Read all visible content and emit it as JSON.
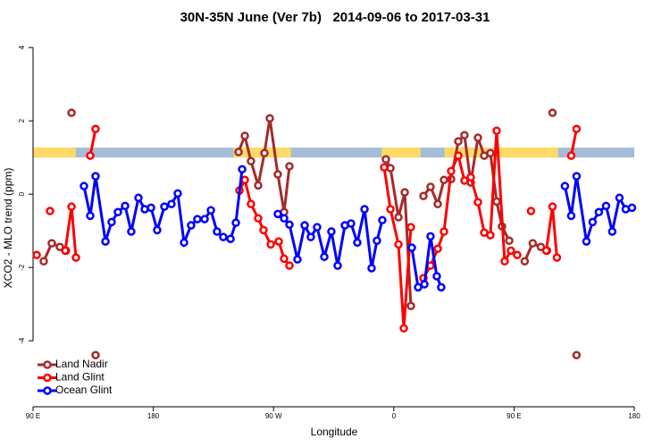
{
  "chart_data": {
    "type": "line",
    "title": "30N-35N June (Ver 7b)   2014-09-06 to 2017-03-31",
    "xlabel": "Longitude",
    "ylabel": "XCO2 - MLO trend (ppm)",
    "xlim": [
      90,
      540
    ],
    "ylim": [
      -5.8,
      4.4
    ],
    "xticks": [
      {
        "value": 90,
        "label": "90 E"
      },
      {
        "value": 180,
        "label": "180"
      },
      {
        "value": 270,
        "label": "90 W"
      },
      {
        "value": 360,
        "label": "0"
      },
      {
        "value": 450,
        "label": "90 E"
      },
      {
        "value": 540,
        "label": "180"
      }
    ],
    "yticks": [
      -4,
      -2,
      0,
      2,
      4
    ],
    "legend": "bottom-left",
    "band_ylim": [
      1.0,
      1.27
    ],
    "land_color": "#ffd966",
    "ocean_color": "#a4bcd8",
    "land_ranges": [
      [
        90,
        122
      ],
      [
        240,
        283
      ],
      [
        351,
        380
      ],
      [
        398,
        483
      ]
    ],
    "series": [
      {
        "name": "Land Nadir",
        "color": "#a52a2a",
        "x": [
          98,
          104,
          110.1,
          114.7,
          null,
          118.8,
          null,
          136.8,
          null,
          243.8,
          248.5,
          253.1,
          258.5,
          263.2,
          267.2,
          273.2,
          277.9,
          281.9,
          null,
          354.1,
          357.5,
          363.5,
          368.2,
          372.8,
          null,
          382.2,
          387.5,
          392.9,
          397.6,
          402.9,
          408.3,
          412.9,
          417.6,
          423,
          427.7,
          432.3,
          437,
          441,
          446.4,
          null,
          458,
          464,
          470.1,
          474.7,
          null,
          478.8,
          null,
          496.8
        ],
        "values": [
          -1.83,
          -1.34,
          -1.44,
          -1.54,
          null,
          2.22,
          null,
          -4.39,
          null,
          1.15,
          1.59,
          0.9,
          0.24,
          1.12,
          2.07,
          0.54,
          -0.49,
          0.76,
          null,
          0.95,
          0.71,
          -0.63,
          0.05,
          -3.05,
          null,
          -0.05,
          0.2,
          -0.27,
          0.39,
          0.41,
          1.44,
          1.61,
          0.32,
          1.54,
          1.05,
          1.12,
          -0.2,
          -0.88,
          -1.27,
          null,
          -1.83,
          -1.34,
          -1.44,
          -1.54,
          null,
          2.22,
          null,
          -4.39
        ]
      },
      {
        "name": "Land Glint",
        "color": "#ff0000",
        "x": [
          92.7,
          null,
          102.7,
          null,
          114.1,
          118.8,
          122.1,
          null,
          132.8,
          136.8,
          null,
          244.5,
          248.5,
          253.1,
          258.5,
          262.5,
          267.9,
          273.9,
          277.9,
          281.9,
          null,
          352.8,
          357.5,
          363.5,
          367.5,
          372.8,
          null,
          382.2,
          387.5,
          392.9,
          397.6,
          402.9,
          408.3,
          412.9,
          417.6,
          423,
          427.7,
          432.3,
          437,
          443,
          447.7,
          452.4,
          null,
          462.7,
          null,
          474.1,
          478.8,
          482.1,
          null,
          492.8,
          496.8
        ],
        "values": [
          -1.66,
          null,
          -0.46,
          null,
          -1.54,
          -0.34,
          -1.73,
          null,
          1.05,
          1.78,
          null,
          0.1,
          0.39,
          -0.27,
          -0.66,
          -0.98,
          -1.37,
          -1.29,
          -1.76,
          -1.95,
          null,
          0.73,
          -0.41,
          -1.37,
          -3.66,
          -0.9,
          null,
          -2.29,
          -1.95,
          -1.49,
          -1.02,
          0.63,
          1.05,
          0.37,
          0.46,
          -0.22,
          -1.05,
          -1.12,
          1.73,
          -1.83,
          -1.54,
          -1.66,
          null,
          -0.46,
          null,
          -1.54,
          -0.34,
          -1.73,
          null,
          1.05,
          1.78
        ]
      },
      {
        "name": "Ocean Glint",
        "color": "#0000ff",
        "x": [
          128.1,
          132.8,
          136.8,
          144.2,
          148.8,
          153.5,
          158.9,
          163.5,
          168.9,
          173.6,
          178.3,
          182.9,
          188.3,
          193.6,
          198.3,
          203,
          208.3,
          213,
          218.4,
          223.1,
          227.7,
          232.4,
          237.8,
          241.8,
          246.5,
          null,
          273.2,
          277.9,
          281.9,
          287.9,
          293.3,
          297.9,
          302.6,
          308,
          313.3,
          318,
          323.4,
          328,
          332.7,
          338.1,
          343.4,
          347.4,
          351.4,
          null,
          373.5,
          378.2,
          382.9,
          387.5,
          392.2,
          395.5,
          null,
          488.1,
          492.8,
          496.8,
          504.2,
          508.8,
          513.5,
          518.9,
          523.5,
          528.9,
          533.6,
          538.3
        ],
        "values": [
          0.22,
          -0.59,
          0.49,
          -1.29,
          -0.76,
          -0.49,
          -0.32,
          -1.02,
          -0.1,
          -0.41,
          -0.37,
          -0.98,
          -0.34,
          -0.27,
          0.02,
          -1.32,
          -0.85,
          -0.68,
          -0.68,
          -0.44,
          -1.02,
          -1.17,
          -1.22,
          -0.78,
          0.68,
          null,
          -0.54,
          -0.66,
          -0.83,
          -1.78,
          -0.85,
          -1.17,
          -0.9,
          -1.71,
          -1.02,
          -1.95,
          -0.85,
          -0.8,
          -1.32,
          -0.41,
          -2.02,
          -1.27,
          -0.71,
          null,
          -1.46,
          -2.54,
          -2.46,
          -1.15,
          -2.24,
          -2.54,
          null,
          0.22,
          -0.59,
          0.49,
          -1.29,
          -0.76,
          -0.49,
          -0.32,
          -1.02,
          -0.1,
          -0.41,
          -0.37
        ]
      }
    ]
  }
}
